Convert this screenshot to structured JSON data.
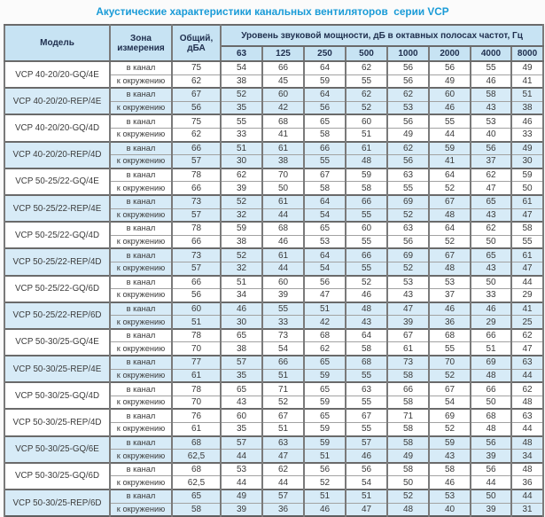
{
  "title": "Акустические характеристики канальных вентиляторов  серии VCP",
  "colors": {
    "title_accent": "#199bd7",
    "header_background": "#c7e3f3",
    "striped_row_background": "#d7ebf7",
    "border_dark": "#6a6a6a"
  },
  "table": {
    "headers": {
      "model": "Модель",
      "zone": "Зона измерения",
      "total": "Общий, дБА",
      "freq_group": "Уровень звуковой мощности, дБ в октавных полосах частот, Гц",
      "frequencies": [
        "63",
        "125",
        "250",
        "500",
        "1000",
        "2000",
        "4000",
        "8000"
      ]
    },
    "zone_labels": [
      "в канал",
      "к окружению"
    ],
    "rows": [
      {
        "model": "VCP 40-20/20-GQ/4E",
        "shaded": false,
        "duct": {
          "total": "75",
          "values": [
            54,
            66,
            64,
            62,
            56,
            56,
            55,
            49
          ]
        },
        "ambient": {
          "total": "62",
          "values": [
            38,
            45,
            59,
            55,
            56,
            49,
            46,
            41
          ]
        }
      },
      {
        "model": "VCP 40-20/20-REP/4E",
        "shaded": true,
        "duct": {
          "total": "67",
          "values": [
            52,
            60,
            64,
            62,
            62,
            60,
            58,
            51
          ]
        },
        "ambient": {
          "total": "56",
          "values": [
            35,
            42,
            56,
            52,
            53,
            46,
            43,
            38
          ]
        }
      },
      {
        "model": "VCP 40-20/20-GQ/4D",
        "shaded": false,
        "duct": {
          "total": "75",
          "values": [
            55,
            68,
            65,
            60,
            56,
            55,
            53,
            46
          ]
        },
        "ambient": {
          "total": "62",
          "values": [
            33,
            41,
            58,
            51,
            49,
            44,
            40,
            33
          ]
        }
      },
      {
        "model": "VCP 40-20/20-REP/4D",
        "shaded": true,
        "duct": {
          "total": "66",
          "values": [
            51,
            61,
            66,
            61,
            62,
            59,
            56,
            49
          ]
        },
        "ambient": {
          "total": "57",
          "values": [
            30,
            38,
            55,
            48,
            56,
            41,
            37,
            30
          ]
        }
      },
      {
        "model": "VCP 50-25/22-GQ/4E",
        "shaded": false,
        "duct": {
          "total": "78",
          "values": [
            62,
            70,
            67,
            59,
            63,
            64,
            62,
            59
          ]
        },
        "ambient": {
          "total": "66",
          "values": [
            39,
            50,
            58,
            58,
            55,
            52,
            47,
            50
          ]
        }
      },
      {
        "model": "VCP 50-25/22-REP/4E",
        "shaded": true,
        "duct": {
          "total": "73",
          "values": [
            52,
            61,
            64,
            66,
            69,
            67,
            65,
            61
          ]
        },
        "ambient": {
          "total": "57",
          "values": [
            32,
            44,
            54,
            55,
            52,
            48,
            43,
            47
          ]
        }
      },
      {
        "model": "VCP 50-25/22-GQ/4D",
        "shaded": false,
        "duct": {
          "total": "78",
          "values": [
            59,
            68,
            65,
            60,
            63,
            64,
            62,
            58
          ]
        },
        "ambient": {
          "total": "66",
          "values": [
            38,
            46,
            53,
            55,
            56,
            52,
            50,
            55
          ]
        }
      },
      {
        "model": "VCP 50-25/22-REP/4D",
        "shaded": true,
        "duct": {
          "total": "73",
          "values": [
            52,
            61,
            64,
            66,
            69,
            67,
            65,
            61
          ]
        },
        "ambient": {
          "total": "57",
          "values": [
            32,
            44,
            54,
            55,
            52,
            48,
            43,
            47
          ]
        }
      },
      {
        "model": "VCP 50-25/22-GQ/6D",
        "shaded": false,
        "duct": {
          "total": "66",
          "values": [
            51,
            60,
            56,
            52,
            53,
            53,
            50,
            44
          ]
        },
        "ambient": {
          "total": "56",
          "values": [
            34,
            39,
            47,
            46,
            43,
            37,
            33,
            29
          ]
        }
      },
      {
        "model": "VCP 50-25/22-REP/6D",
        "shaded": true,
        "duct": {
          "total": "60",
          "values": [
            46,
            55,
            51,
            48,
            47,
            46,
            46,
            41
          ]
        },
        "ambient": {
          "total": "51",
          "values": [
            30,
            33,
            42,
            43,
            39,
            36,
            29,
            25
          ]
        }
      },
      {
        "model": "VCP 50-30/25-GQ/4E",
        "shaded": false,
        "duct": {
          "total": "78",
          "values": [
            65,
            73,
            68,
            64,
            67,
            68,
            66,
            62
          ]
        },
        "ambient": {
          "total": "70",
          "values": [
            38,
            54,
            62,
            58,
            61,
            55,
            51,
            47
          ]
        }
      },
      {
        "model": "VCP 50-30/25-REP/4E",
        "shaded": true,
        "duct": {
          "total": "77",
          "values": [
            57,
            66,
            65,
            68,
            73,
            70,
            69,
            63
          ]
        },
        "ambient": {
          "total": "61",
          "values": [
            35,
            51,
            59,
            55,
            58,
            52,
            48,
            44
          ]
        }
      },
      {
        "model": "VCP 50-30/25-GQ/4D",
        "shaded": false,
        "duct": {
          "total": "78",
          "values": [
            65,
            71,
            65,
            63,
            66,
            67,
            66,
            62
          ]
        },
        "ambient": {
          "total": "70",
          "values": [
            43,
            52,
            59,
            55,
            58,
            54,
            50,
            48
          ]
        }
      },
      {
        "model": "VCP 50-30/25-REP/4D",
        "shaded": false,
        "duct": {
          "total": "76",
          "values": [
            60,
            67,
            65,
            67,
            71,
            69,
            68,
            63
          ]
        },
        "ambient": {
          "total": "61",
          "values": [
            35,
            51,
            59,
            55,
            58,
            52,
            48,
            44
          ]
        }
      },
      {
        "model": "VCP 50-30/25-GQ/6E",
        "shaded": true,
        "duct": {
          "total": "68",
          "values": [
            57,
            63,
            59,
            57,
            58,
            59,
            56,
            48
          ]
        },
        "ambient": {
          "total": "62,5",
          "values": [
            44,
            47,
            51,
            46,
            49,
            43,
            39,
            34
          ]
        }
      },
      {
        "model": "VCP 50-30/25-GQ/6D",
        "shaded": false,
        "duct": {
          "total": "68",
          "values": [
            53,
            62,
            56,
            56,
            58,
            58,
            56,
            48
          ]
        },
        "ambient": {
          "total": "62,5",
          "values": [
            44,
            44,
            52,
            54,
            50,
            46,
            44,
            36
          ]
        }
      },
      {
        "model": "VCP 50-30/25-REP/6D",
        "shaded": true,
        "duct": {
          "total": "65",
          "values": [
            49,
            57,
            51,
            51,
            52,
            53,
            50,
            44
          ]
        },
        "ambient": {
          "total": "58",
          "values": [
            39,
            36,
            46,
            47,
            48,
            40,
            39,
            31
          ]
        }
      }
    ]
  }
}
